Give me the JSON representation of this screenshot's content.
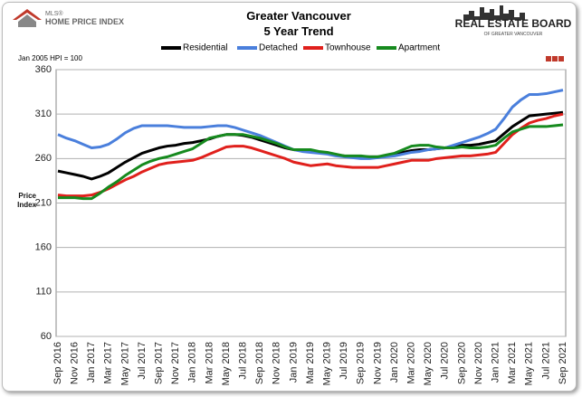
{
  "logo_left": {
    "line1": "MLS®",
    "line2": "HOME PRICE INDEX"
  },
  "logo_right": {
    "line1": "REAL ESTATE BOARD",
    "line2": "OF GREATER VANCOUVER"
  },
  "chart_data": {
    "type": "line",
    "title": "Greater Vancouver",
    "subtitle": "5 Year Trend",
    "note": "Jan 2005 HPI = 100",
    "y_label": "Price Index",
    "categories": [
      "Sep 2016",
      null,
      "Nov 2016",
      null,
      "Jan 2017",
      null,
      "Mar 2017",
      null,
      "May 2017",
      null,
      "Jul 2017",
      null,
      "Sep 2017",
      null,
      "Nov 2017",
      null,
      "Jan 2018",
      null,
      "Mar 2018",
      null,
      "May 2018",
      null,
      "Jul 2018",
      null,
      "Sep 2018",
      null,
      "Nov 2018",
      null,
      "Jan 2019",
      null,
      "Mar 2019",
      null,
      "May 2019",
      null,
      "Jul 2019",
      null,
      "Sep 2019",
      null,
      "Nov 2019",
      null,
      "Jan 2020",
      null,
      "Mar 2020",
      null,
      "May 2020",
      null,
      "Jul 2020",
      null,
      "Sep 2020",
      null,
      "Nov 2020",
      null,
      "Jan 2021",
      null,
      "Mar 2021",
      null,
      "May 2021",
      null,
      "Jul 2021",
      null,
      "Sep 2021"
    ],
    "series": [
      {
        "name": "Residential",
        "color": "#000000",
        "values": [
          246,
          244,
          242,
          240,
          237,
          240,
          244,
          250,
          256,
          261,
          266,
          269,
          272,
          274,
          275,
          277,
          278,
          280,
          282,
          285,
          287,
          287,
          286,
          284,
          281,
          278,
          275,
          272,
          270,
          269,
          268,
          267,
          266,
          264,
          263,
          262,
          262,
          262,
          262,
          263,
          265,
          267,
          269,
          270,
          270,
          271,
          272,
          274,
          275,
          275,
          276,
          278,
          280,
          288,
          296,
          302,
          308,
          309,
          310,
          311,
          312
        ]
      },
      {
        "name": "Detached",
        "color": "#4a7fdc",
        "values": [
          287,
          283,
          280,
          276,
          272,
          273,
          276,
          282,
          289,
          294,
          297,
          297,
          297,
          297,
          296,
          295,
          295,
          295,
          296,
          297,
          297,
          295,
          292,
          289,
          286,
          282,
          278,
          274,
          270,
          268,
          267,
          266,
          265,
          263,
          262,
          261,
          260,
          260,
          261,
          262,
          263,
          265,
          267,
          268,
          270,
          271,
          272,
          275,
          278,
          281,
          284,
          288,
          293,
          305,
          318,
          326,
          332,
          332,
          333,
          335,
          337
        ]
      },
      {
        "name": "Townhouse",
        "color": "#e0201c",
        "values": [
          219,
          218,
          218,
          218,
          219,
          222,
          226,
          231,
          236,
          240,
          245,
          249,
          253,
          255,
          256,
          257,
          258,
          261,
          265,
          269,
          273,
          274,
          274,
          272,
          269,
          266,
          263,
          260,
          256,
          254,
          252,
          253,
          254,
          252,
          251,
          250,
          250,
          250,
          250,
          252,
          254,
          256,
          258,
          258,
          258,
          260,
          261,
          262,
          263,
          263,
          264,
          265,
          267,
          277,
          287,
          294,
          300,
          303,
          305,
          308,
          310
        ]
      },
      {
        "name": "Apartment",
        "color": "#168a1e",
        "values": [
          216,
          216,
          216,
          215,
          215,
          221,
          228,
          234,
          241,
          247,
          253,
          257,
          260,
          262,
          265,
          268,
          271,
          277,
          283,
          285,
          287,
          287,
          287,
          285,
          283,
          280,
          277,
          273,
          270,
          270,
          270,
          268,
          267,
          265,
          263,
          263,
          263,
          262,
          262,
          264,
          266,
          270,
          274,
          275,
          275,
          273,
          272,
          272,
          273,
          272,
          272,
          273,
          275,
          283,
          290,
          293,
          296,
          296,
          296,
          297,
          298
        ]
      }
    ],
    "ylim": [
      60,
      360
    ],
    "yticks": [
      60,
      110,
      160,
      210,
      260,
      310,
      360
    ],
    "grid": true
  }
}
